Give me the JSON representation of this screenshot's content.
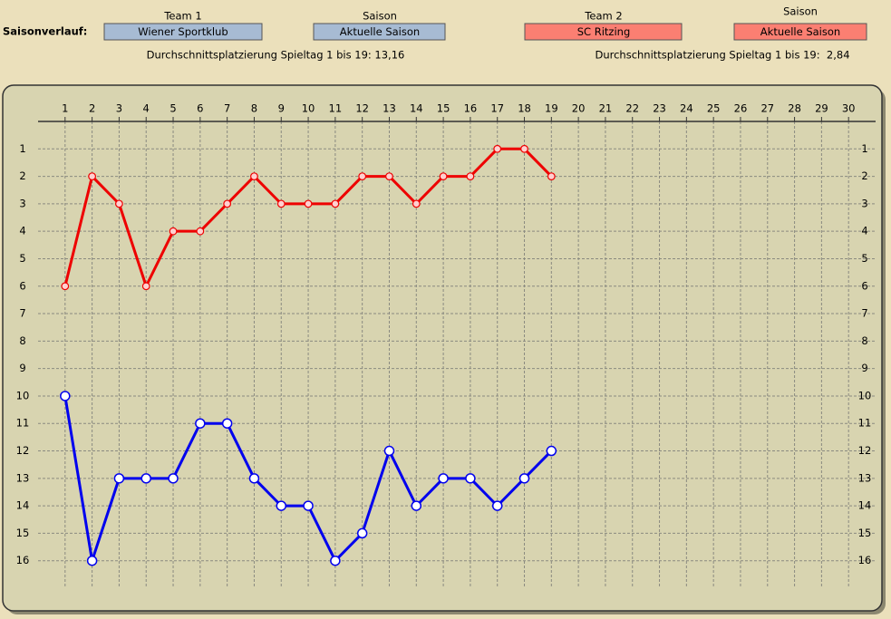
{
  "header": {
    "section_label": "Saisonverlauf:",
    "team1_label": "Team 1",
    "season1_label": "Saison",
    "season1_value": "Aktuelle Saison",
    "team2_label": "Team 2",
    "season2_label": "Saison",
    "season2_value": "Aktuelle Saison",
    "team1_average": "Durchschnittsplatzierung Spieltag 1 bis 19: 13,16",
    "team2_average": "Durchschnittsplatzierung Spieltag 1 bis 19:  2,84"
  },
  "chart_data": {
    "type": "line",
    "x": [
      1,
      2,
      3,
      4,
      5,
      6,
      7,
      8,
      9,
      10,
      11,
      12,
      13,
      14,
      15,
      16,
      17,
      18,
      19
    ],
    "series": [
      {
        "name": "Wiener Sportklub",
        "color": "#0000ee",
        "values": [
          10,
          16,
          13,
          13,
          13,
          11,
          11,
          13,
          14,
          14,
          16,
          15,
          12,
          14,
          13,
          13,
          14,
          13,
          12
        ]
      },
      {
        "name": "SC Ritzing",
        "color": "#ee0000",
        "values": [
          6,
          2,
          3,
          6,
          4,
          4,
          3,
          2,
          3,
          3,
          3,
          2,
          2,
          3,
          2,
          2,
          1,
          1,
          2
        ]
      }
    ],
    "xlim": [
      0,
      31
    ],
    "xticks": [
      1,
      2,
      3,
      4,
      5,
      6,
      7,
      8,
      9,
      10,
      11,
      12,
      13,
      14,
      15,
      16,
      17,
      18,
      19,
      20,
      21,
      22,
      23,
      24,
      25,
      26,
      27,
      28,
      29,
      30
    ],
    "ylim": [
      17,
      0
    ],
    "yticks": [
      1,
      2,
      3,
      4,
      5,
      6,
      7,
      8,
      9,
      10,
      11,
      12,
      13,
      14,
      15,
      16
    ],
    "grid": true
  }
}
